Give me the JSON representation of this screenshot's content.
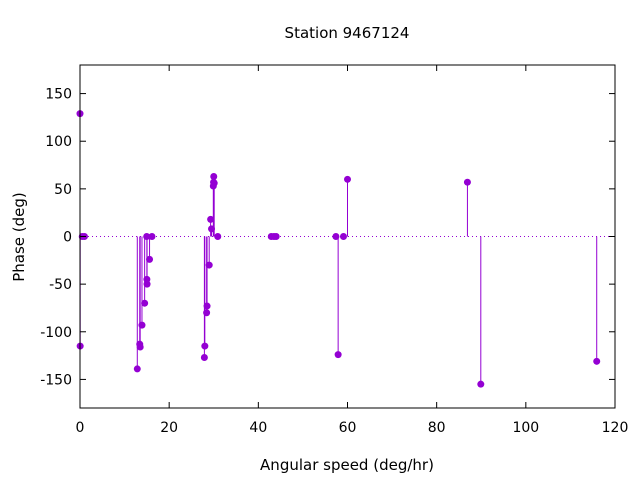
{
  "chart_data": {
    "type": "scatter",
    "title": "Station 9467124",
    "xlabel": "Angular speed (deg/hr)",
    "ylabel": "Phase (deg)",
    "xlim": [
      0,
      120
    ],
    "ylim": [
      -180,
      180
    ],
    "xticks": [
      0,
      20,
      40,
      60,
      80,
      100,
      120
    ],
    "yticks": [
      -150,
      -100,
      -50,
      0,
      50,
      100,
      150
    ],
    "grid": false,
    "style": "impulses-with-points",
    "zero_line": true,
    "color": "#9400d3",
    "points": [
      {
        "x": 0.0,
        "y": 129
      },
      {
        "x": 0.04,
        "y": -115
      },
      {
        "x": 0.5,
        "y": 0
      },
      {
        "x": 1.0,
        "y": 0
      },
      {
        "x": 12.85,
        "y": -139
      },
      {
        "x": 13.4,
        "y": -113
      },
      {
        "x": 13.5,
        "y": -116
      },
      {
        "x": 13.9,
        "y": -93
      },
      {
        "x": 14.5,
        "y": -70
      },
      {
        "x": 14.96,
        "y": 0
      },
      {
        "x": 15.0,
        "y": -45
      },
      {
        "x": 15.04,
        "y": -50
      },
      {
        "x": 15.6,
        "y": -24
      },
      {
        "x": 16.14,
        "y": 0
      },
      {
        "x": 27.9,
        "y": -127
      },
      {
        "x": 28.0,
        "y": -115
      },
      {
        "x": 28.4,
        "y": -80
      },
      {
        "x": 28.5,
        "y": -73
      },
      {
        "x": 28.98,
        "y": -30
      },
      {
        "x": 29.3,
        "y": 18
      },
      {
        "x": 29.5,
        "y": 8
      },
      {
        "x": 29.9,
        "y": 53
      },
      {
        "x": 29.96,
        "y": 57
      },
      {
        "x": 30.0,
        "y": 63
      },
      {
        "x": 30.1,
        "y": 56
      },
      {
        "x": 30.9,
        "y": 0
      },
      {
        "x": 42.9,
        "y": 0
      },
      {
        "x": 43.5,
        "y": 0
      },
      {
        "x": 44.0,
        "y": 0
      },
      {
        "x": 57.4,
        "y": 0
      },
      {
        "x": 57.9,
        "y": -124
      },
      {
        "x": 59.1,
        "y": 0
      },
      {
        "x": 60.0,
        "y": 60
      },
      {
        "x": 86.9,
        "y": 57
      },
      {
        "x": 89.9,
        "y": -155
      },
      {
        "x": 115.9,
        "y": -131
      }
    ]
  }
}
